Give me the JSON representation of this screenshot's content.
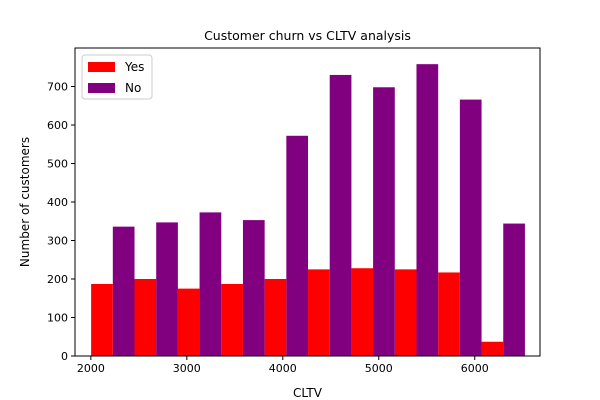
{
  "chart_data": {
    "type": "bar",
    "title": "Customer churn vs CLTV analysis",
    "xlabel": "CLTV",
    "ylabel": "Number of customers",
    "xlim": [
      1835,
      6680
    ],
    "ylim": [
      0,
      800
    ],
    "xticks": [
      2000,
      3000,
      4000,
      5000,
      6000
    ],
    "yticks": [
      0,
      100,
      200,
      300,
      400,
      500,
      600,
      700
    ],
    "bin_edges": [
      2003,
      2455,
      2907,
      3359,
      3811,
      4263,
      4715,
      5167,
      5619,
      6071,
      6523
    ],
    "series": [
      {
        "name": "Yes",
        "color": "#ff0000",
        "values": [
          187,
          200,
          175,
          187,
          200,
          225,
          228,
          225,
          217,
          37
        ]
      },
      {
        "name": "No",
        "color": "#800080",
        "values": [
          336,
          347,
          373,
          353,
          572,
          730,
          698,
          758,
          666,
          344
        ]
      }
    ],
    "legend": {
      "position": "upper-left"
    },
    "grid": false
  }
}
